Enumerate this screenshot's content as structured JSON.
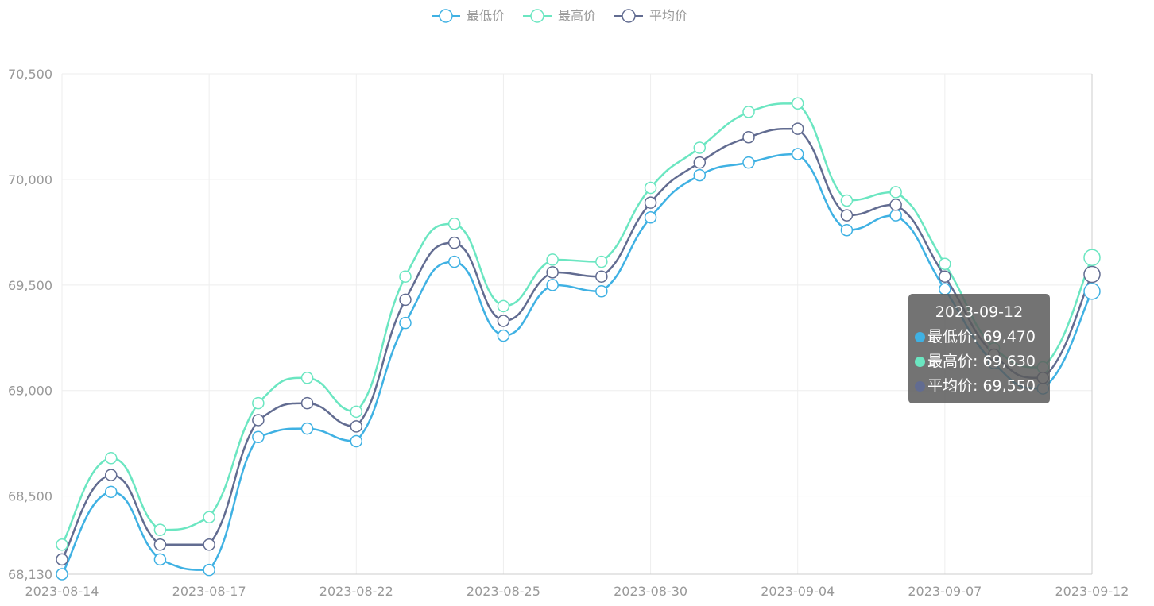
{
  "chart_data": {
    "type": "line",
    "smooth": true,
    "categories": [
      "2023-08-14",
      null,
      null,
      "2023-08-17",
      null,
      null,
      "2023-08-22",
      null,
      null,
      "2023-08-25",
      null,
      null,
      "2023-08-30",
      null,
      null,
      "2023-09-04",
      null,
      null,
      "2023-09-07",
      null,
      null,
      "2023-09-12"
    ],
    "series": [
      {
        "name": "最低价",
        "color": "#3fb1e3",
        "values": [
          68130,
          68520,
          68200,
          68150,
          68780,
          68820,
          68760,
          69320,
          69610,
          69260,
          69500,
          69470,
          69820,
          70020,
          70080,
          70120,
          69760,
          69830,
          69480,
          69130,
          69010,
          69470
        ]
      },
      {
        "name": "最高价",
        "color": "#6be6c1",
        "values": [
          68270,
          68680,
          68340,
          68400,
          68940,
          69060,
          68900,
          69540,
          69790,
          69400,
          69620,
          69610,
          69960,
          70150,
          70320,
          70360,
          69900,
          69940,
          69600,
          69200,
          69110,
          69630
        ]
      },
      {
        "name": "平均价",
        "color": "#626c91",
        "values": [
          68200,
          68600,
          68270,
          68270,
          68860,
          68940,
          68830,
          69430,
          69700,
          69330,
          69560,
          69540,
          69890,
          70080,
          70200,
          70240,
          69830,
          69880,
          69540,
          69170,
          69060,
          69550
        ]
      }
    ],
    "ylim": [
      68130,
      70500
    ],
    "yticks": [
      {
        "value": 68130,
        "label": "68,130"
      },
      {
        "value": 68500,
        "label": "68,500"
      },
      {
        "value": 69000,
        "label": "69,000"
      },
      {
        "value": 69500,
        "label": "69,500"
      },
      {
        "value": 70000,
        "label": "70,000"
      },
      {
        "value": 70500,
        "label": "70,500"
      }
    ],
    "grid": true,
    "legend": "top",
    "tooltip": {
      "title": "2023-09-12",
      "lines": [
        "最低价: 69,470",
        "最高价: 69,630",
        "平均价: 69,550"
      ],
      "index": 21
    }
  }
}
